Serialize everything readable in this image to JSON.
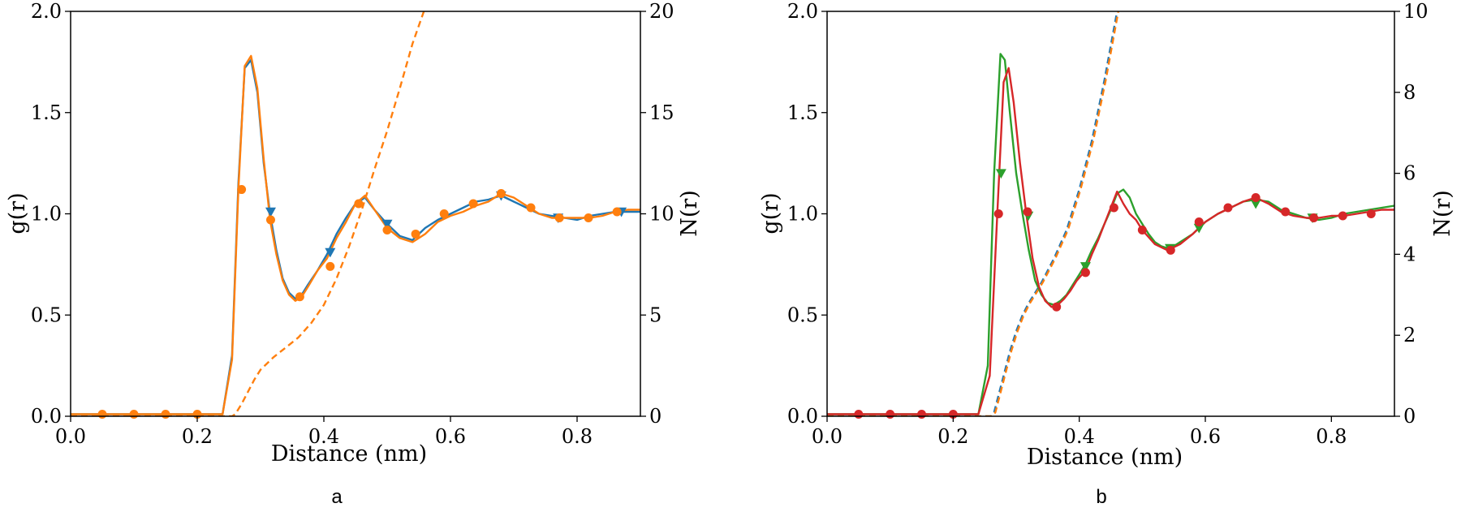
{
  "chart_data": [
    {
      "type": "line",
      "panel_label": "a",
      "xlabel": "Distance (nm)",
      "ylabel": "g(r)",
      "ylabel_right": "N(r)",
      "xlim": [
        0,
        0.9
      ],
      "ylim": [
        0,
        2.0
      ],
      "ylim_right": [
        0,
        20
      ],
      "xticks": [
        0.0,
        0.2,
        0.4,
        0.6,
        0.8
      ],
      "xtick_labels": [
        "0.0",
        "0.2",
        "0.4",
        "0.6",
        "0.8"
      ],
      "yticks": [
        0.0,
        0.5,
        1.0,
        1.5,
        2.0
      ],
      "ytick_labels": [
        "0.0",
        "0.5",
        "1.0",
        "1.5",
        "2.0"
      ],
      "yticks_right": [
        0,
        5,
        10,
        15,
        20
      ],
      "ytick_labels_right": [
        "0",
        "5",
        "10",
        "15",
        "20"
      ],
      "grid": false,
      "series": [
        {
          "axis": "left",
          "style": "solid",
          "color": "#1f77b4",
          "marker": "triangle-down",
          "x": [
            0.0,
            0.05,
            0.1,
            0.15,
            0.2,
            0.24,
            0.255,
            0.265,
            0.275,
            0.285,
            0.295,
            0.305,
            0.315,
            0.325,
            0.335,
            0.345,
            0.355,
            0.365,
            0.375,
            0.39,
            0.405,
            0.42,
            0.435,
            0.45,
            0.465,
            0.48,
            0.5,
            0.52,
            0.54,
            0.56,
            0.58,
            0.6,
            0.62,
            0.64,
            0.66,
            0.68,
            0.7,
            0.72,
            0.74,
            0.76,
            0.78,
            0.8,
            0.82,
            0.84,
            0.86,
            0.88,
            0.9
          ],
          "y": [
            0.01,
            0.01,
            0.01,
            0.01,
            0.01,
            0.01,
            0.3,
            1.15,
            1.72,
            1.76,
            1.6,
            1.25,
            1.0,
            0.82,
            0.68,
            0.61,
            0.58,
            0.6,
            0.65,
            0.72,
            0.8,
            0.9,
            0.98,
            1.05,
            1.08,
            1.02,
            0.95,
            0.89,
            0.87,
            0.93,
            0.97,
            1.0,
            1.03,
            1.06,
            1.07,
            1.09,
            1.06,
            1.03,
            1.0,
            0.99,
            0.98,
            0.97,
            0.99,
            1.0,
            1.01,
            1.01,
            1.01
          ],
          "marker_x": [
            0.316,
            0.41,
            0.5,
            0.68,
            0.77,
            0.87
          ],
          "marker_y": [
            1.01,
            0.81,
            0.95,
            1.09,
            0.98,
            1.01
          ]
        },
        {
          "axis": "left",
          "style": "solid",
          "color": "#ff7f0e",
          "marker": "circle",
          "x": [
            0.0,
            0.05,
            0.1,
            0.15,
            0.2,
            0.24,
            0.255,
            0.265,
            0.275,
            0.285,
            0.295,
            0.305,
            0.315,
            0.325,
            0.335,
            0.345,
            0.355,
            0.365,
            0.375,
            0.39,
            0.405,
            0.42,
            0.435,
            0.45,
            0.465,
            0.48,
            0.5,
            0.52,
            0.54,
            0.56,
            0.58,
            0.6,
            0.62,
            0.64,
            0.66,
            0.68,
            0.7,
            0.72,
            0.74,
            0.76,
            0.78,
            0.8,
            0.82,
            0.84,
            0.86,
            0.88,
            0.9
          ],
          "y": [
            0.01,
            0.01,
            0.01,
            0.01,
            0.01,
            0.01,
            0.28,
            1.12,
            1.73,
            1.78,
            1.62,
            1.27,
            0.97,
            0.8,
            0.67,
            0.6,
            0.57,
            0.59,
            0.64,
            0.72,
            0.78,
            0.88,
            0.96,
            1.05,
            1.09,
            1.02,
            0.93,
            0.88,
            0.86,
            0.9,
            0.96,
            0.99,
            1.01,
            1.04,
            1.06,
            1.1,
            1.08,
            1.04,
            1.0,
            0.98,
            0.98,
            0.98,
            0.98,
            0.99,
            1.01,
            1.02,
            1.02
          ],
          "marker_x": [
            0.05,
            0.1,
            0.15,
            0.2,
            0.27,
            0.316,
            0.362,
            0.41,
            0.455,
            0.5,
            0.545,
            0.59,
            0.636,
            0.68,
            0.727,
            0.772,
            0.818,
            0.863
          ],
          "marker_y": [
            0.01,
            0.01,
            0.01,
            0.01,
            1.12,
            0.97,
            0.59,
            0.74,
            1.05,
            0.92,
            0.9,
            1.0,
            1.05,
            1.1,
            1.03,
            0.98,
            0.98,
            1.01
          ]
        },
        {
          "axis": "right",
          "style": "dashed",
          "color": "#ff7f0e",
          "x": [
            0.0,
            0.255,
            0.26,
            0.27,
            0.28,
            0.29,
            0.3,
            0.32,
            0.34,
            0.36,
            0.38,
            0.4,
            0.42,
            0.44,
            0.46,
            0.48,
            0.5,
            0.52,
            0.54,
            0.558
          ],
          "y": [
            0.0,
            0.0,
            0.1,
            0.6,
            1.2,
            1.8,
            2.3,
            2.9,
            3.4,
            3.9,
            4.6,
            5.5,
            6.8,
            8.4,
            10.2,
            12.2,
            14.1,
            16.2,
            18.4,
            20.0
          ]
        }
      ]
    },
    {
      "type": "line",
      "panel_label": "b",
      "xlabel": "Distance (nm)",
      "ylabel": "g(r)",
      "ylabel_right": "N(r)",
      "xlim": [
        0,
        0.9
      ],
      "ylim": [
        0,
        2.0
      ],
      "ylim_right": [
        0,
        10
      ],
      "xticks": [
        0.0,
        0.2,
        0.4,
        0.6,
        0.8
      ],
      "xtick_labels": [
        "0.0",
        "0.2",
        "0.4",
        "0.6",
        "0.8"
      ],
      "yticks": [
        0.0,
        0.5,
        1.0,
        1.5,
        2.0
      ],
      "ytick_labels": [
        "0.0",
        "0.5",
        "1.0",
        "1.5",
        "2.0"
      ],
      "yticks_right": [
        0,
        2,
        4,
        6,
        8,
        10
      ],
      "ytick_labels_right": [
        "0",
        "2",
        "4",
        "6",
        "8",
        "10"
      ],
      "grid": false,
      "series": [
        {
          "axis": "right",
          "style": "dashed",
          "color": "#1f77b4",
          "x": [
            0.0,
            0.26,
            0.265,
            0.27,
            0.28,
            0.29,
            0.3,
            0.31,
            0.32,
            0.34,
            0.36,
            0.38,
            0.4,
            0.42,
            0.44,
            0.46
          ],
          "y": [
            0.0,
            0.0,
            0.1,
            0.4,
            1.0,
            1.6,
            2.1,
            2.5,
            2.8,
            3.3,
            3.9,
            4.6,
            5.6,
            6.8,
            8.3,
            10.0
          ]
        },
        {
          "axis": "right",
          "style": "dashed",
          "color": "#ff7f0e",
          "x": [
            0.0,
            0.262,
            0.267,
            0.272,
            0.282,
            0.292,
            0.302,
            0.312,
            0.322,
            0.342,
            0.362,
            0.382,
            0.402,
            0.422,
            0.442,
            0.462
          ],
          "y": [
            0.0,
            0.0,
            0.1,
            0.4,
            1.0,
            1.6,
            2.1,
            2.5,
            2.8,
            3.3,
            3.9,
            4.6,
            5.6,
            6.8,
            8.3,
            10.0
          ]
        },
        {
          "axis": "left",
          "style": "solid",
          "color": "#2ca02c",
          "marker": "triangle-down",
          "x": [
            0.0,
            0.05,
            0.1,
            0.15,
            0.2,
            0.24,
            0.255,
            0.265,
            0.275,
            0.282,
            0.29,
            0.3,
            0.31,
            0.32,
            0.33,
            0.34,
            0.35,
            0.36,
            0.37,
            0.38,
            0.39,
            0.4,
            0.41,
            0.42,
            0.43,
            0.44,
            0.45,
            0.46,
            0.47,
            0.48,
            0.49,
            0.5,
            0.51,
            0.52,
            0.53,
            0.54,
            0.55,
            0.56,
            0.57,
            0.58,
            0.59,
            0.6,
            0.62,
            0.64,
            0.66,
            0.68,
            0.7,
            0.72,
            0.74,
            0.76,
            0.78,
            0.8,
            0.82,
            0.84,
            0.86,
            0.88,
            0.9
          ],
          "y": [
            0.01,
            0.01,
            0.01,
            0.01,
            0.01,
            0.01,
            0.25,
            1.2,
            1.79,
            1.76,
            1.5,
            1.2,
            1.0,
            0.82,
            0.67,
            0.6,
            0.56,
            0.55,
            0.57,
            0.6,
            0.65,
            0.7,
            0.75,
            0.82,
            0.88,
            0.95,
            1.02,
            1.1,
            1.12,
            1.08,
            1.0,
            0.95,
            0.9,
            0.86,
            0.84,
            0.83,
            0.84,
            0.86,
            0.88,
            0.9,
            0.93,
            0.96,
            1.0,
            1.03,
            1.06,
            1.07,
            1.06,
            1.02,
            1.0,
            0.98,
            0.97,
            0.98,
            1.0,
            1.01,
            1.02,
            1.03,
            1.04
          ],
          "marker_x": [
            0.276,
            0.319,
            0.41,
            0.544,
            0.59,
            0.68,
            0.77
          ],
          "marker_y": [
            1.2,
            0.99,
            0.74,
            0.83,
            0.93,
            1.05,
            0.98
          ]
        },
        {
          "axis": "left",
          "style": "solid",
          "color": "#d62728",
          "marker": "circle",
          "x": [
            0.0,
            0.05,
            0.1,
            0.15,
            0.2,
            0.24,
            0.258,
            0.27,
            0.28,
            0.288,
            0.296,
            0.306,
            0.316,
            0.326,
            0.336,
            0.346,
            0.356,
            0.366,
            0.376,
            0.386,
            0.396,
            0.41,
            0.42,
            0.43,
            0.44,
            0.45,
            0.46,
            0.47,
            0.48,
            0.49,
            0.5,
            0.52,
            0.54,
            0.56,
            0.58,
            0.6,
            0.62,
            0.64,
            0.66,
            0.68,
            0.7,
            0.72,
            0.74,
            0.76,
            0.78,
            0.8,
            0.82,
            0.84,
            0.86,
            0.88,
            0.9
          ],
          "y": [
            0.01,
            0.01,
            0.01,
            0.01,
            0.01,
            0.01,
            0.2,
            1.0,
            1.65,
            1.72,
            1.55,
            1.25,
            1.0,
            0.78,
            0.64,
            0.57,
            0.54,
            0.55,
            0.58,
            0.62,
            0.67,
            0.72,
            0.8,
            0.87,
            0.95,
            1.03,
            1.11,
            1.05,
            1.0,
            0.97,
            0.92,
            0.85,
            0.82,
            0.85,
            0.9,
            0.96,
            1.0,
            1.03,
            1.06,
            1.08,
            1.05,
            1.01,
            0.99,
            0.98,
            0.98,
            0.99,
            0.99,
            1.0,
            1.01,
            1.02,
            1.02
          ],
          "marker_x": [
            0.05,
            0.1,
            0.15,
            0.2,
            0.272,
            0.318,
            0.364,
            0.41,
            0.455,
            0.5,
            0.545,
            0.59,
            0.636,
            0.68,
            0.727,
            0.772,
            0.818,
            0.863
          ],
          "marker_y": [
            0.01,
            0.01,
            0.01,
            0.01,
            1.0,
            1.01,
            0.54,
            0.71,
            1.03,
            0.92,
            0.82,
            0.96,
            1.03,
            1.08,
            1.01,
            0.98,
            0.99,
            1.0
          ]
        }
      ]
    }
  ]
}
